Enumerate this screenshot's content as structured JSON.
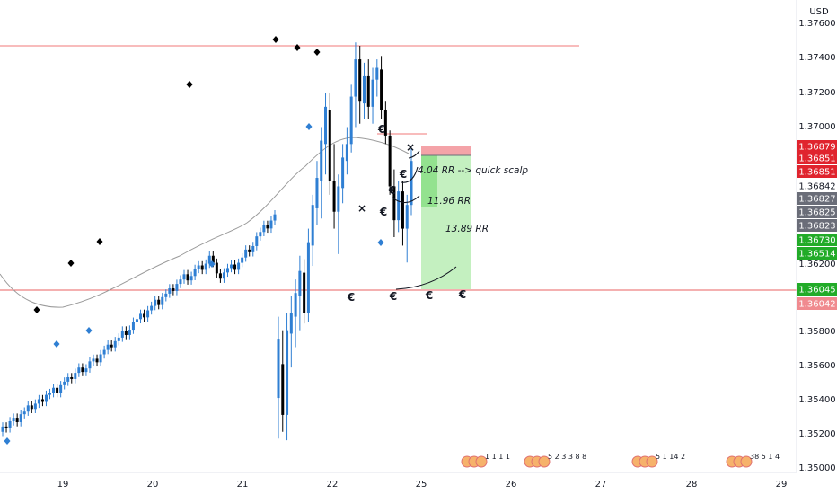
{
  "currency": "USD",
  "colors": {
    "up": "#2f7fd3",
    "down": "#000000",
    "ma": "#9b9b9b",
    "resistance_line": "#f07878",
    "support_line": "#e86060",
    "stop_zone": "#f4a3a8",
    "target_zone": "#c4f0c0",
    "target_zone_small": "#7fdc7a",
    "tag_red": "#e0242e",
    "tag_red_light": "#f08a8f",
    "tag_gray": "#6a6d78",
    "tag_green": "#22ab28",
    "up_marker": "#2f7fd3",
    "down_marker": "#000000"
  },
  "chart_data": {
    "type": "candlestick",
    "symbol_unit": "USD",
    "xlabels": [
      "19",
      "20",
      "21",
      "22",
      "25",
      "26",
      "27",
      "28",
      "29"
    ],
    "ylabels": [
      "1.37600",
      "1.37400",
      "1.37200",
      "1.37000",
      "1.36200",
      "1.35800",
      "1.35600",
      "1.35400",
      "1.35200",
      "1.35000"
    ],
    "ylim": [
      1.3496,
      1.3774
    ],
    "price_tags": [
      {
        "value": "1.36879",
        "price": 1.36879,
        "color": "tag_red"
      },
      {
        "value": "1.36851",
        "price": 1.36851,
        "color": "tag_red"
      },
      {
        "value": "1.36851",
        "price": 1.36851,
        "color": "tag_red"
      },
      {
        "value": "1.36842",
        "price": 1.36842,
        "color": "none"
      },
      {
        "value": "1.36827",
        "price": 1.36827,
        "color": "tag_gray"
      },
      {
        "value": "1.36825",
        "price": 1.36825,
        "color": "tag_gray"
      },
      {
        "value": "1.36823",
        "price": 1.36823,
        "color": "tag_gray"
      },
      {
        "value": "1.36730",
        "price": 1.3673,
        "color": "tag_green"
      },
      {
        "value": "1.36514",
        "price": 1.36514,
        "color": "tag_green"
      },
      {
        "value": "1.36045",
        "price": 1.36045,
        "color": "tag_green"
      },
      {
        "value": "1.36042",
        "price": 1.36042,
        "color": "tag_red_light"
      }
    ],
    "horizontal_lines": [
      {
        "price": 1.3746,
        "name": "resistance"
      },
      {
        "price": 1.36045,
        "name": "support"
      }
    ],
    "candles": [
      [
        1.354,
        1.3588,
        1.3516,
        1.3575
      ],
      [
        1.356,
        1.358,
        1.352,
        1.353
      ],
      [
        1.353,
        1.359,
        1.3515,
        1.358
      ],
      [
        1.3578,
        1.36,
        1.3558,
        1.359
      ],
      [
        1.3588,
        1.361,
        1.357,
        1.3602
      ],
      [
        1.36,
        1.3624,
        1.358,
        1.3615
      ],
      [
        1.3614,
        1.3622,
        1.3584,
        1.359
      ],
      [
        1.359,
        1.364,
        1.3585,
        1.3632
      ],
      [
        1.363,
        1.366,
        1.3618,
        1.3654
      ],
      [
        1.3652,
        1.368,
        1.3642,
        1.367
      ],
      [
        1.3668,
        1.37,
        1.3646,
        1.3692
      ],
      [
        1.369,
        1.372,
        1.3672,
        1.3712
      ],
      [
        1.371,
        1.372,
        1.366,
        1.3668
      ],
      [
        1.3668,
        1.369,
        1.364,
        1.365
      ],
      [
        1.365,
        1.3672,
        1.3625,
        1.3665
      ],
      [
        1.3664,
        1.369,
        1.3655,
        1.3682
      ],
      [
        1.368,
        1.37,
        1.3672,
        1.369
      ],
      [
        1.369,
        1.3725,
        1.3685,
        1.3718
      ],
      [
        1.3718,
        1.375,
        1.37,
        1.374
      ],
      [
        1.374,
        1.3748,
        1.3702,
        1.3715
      ],
      [
        1.3714,
        1.3738,
        1.3705,
        1.373
      ],
      [
        1.373,
        1.374,
        1.3705,
        1.3712
      ],
      [
        1.3712,
        1.3735,
        1.3702,
        1.3728
      ],
      [
        1.3728,
        1.374,
        1.3718,
        1.3735
      ],
      [
        1.3734,
        1.3742,
        1.3705,
        1.371
      ],
      [
        1.371,
        1.3715,
        1.369,
        1.3695
      ],
      [
        1.3695,
        1.3698,
        1.366,
        1.3665
      ],
      [
        1.3665,
        1.3675,
        1.3635,
        1.3645
      ],
      [
        1.3645,
        1.3668,
        1.3638,
        1.3662
      ],
      [
        1.3662,
        1.3668,
        1.363,
        1.364
      ],
      [
        1.364,
        1.366,
        1.362,
        1.3654
      ],
      [
        1.3654,
        1.3688,
        1.3648,
        1.368
      ]
    ],
    "ma_path": [
      [
        1.3635,
        0
      ],
      [
        1.361,
        0.07
      ],
      [
        1.3605,
        0.12
      ],
      [
        1.3612,
        0.2
      ],
      [
        1.3628,
        0.3
      ],
      [
        1.365,
        0.4
      ],
      [
        1.3672,
        0.52
      ],
      [
        1.369,
        0.58
      ],
      [
        1.3695,
        0.63
      ],
      [
        1.3688,
        0.7
      ]
    ],
    "up_markers": [
      1.3525,
      1.3582,
      1.3591,
      1.3613,
      1.3635,
      1.3691
    ],
    "down_markers": [
      1.3605,
      1.3637,
      1.3652,
      1.3718,
      1.3745,
      1.3748,
      1.3746,
      1.3745
    ],
    "annotations": {
      "rr1": "4.04 RR --> quick scalp",
      "rr2": "11.96 RR",
      "rr3": "13.89 RR"
    },
    "euro_symbol": "€",
    "cross_symbol": "×",
    "calendar": [
      {
        "text": "1 1 1 1"
      },
      {
        "text": "5 2 3 3 8 8"
      },
      {
        "text": "5 1 14 2"
      },
      {
        "text": "38 5 1 4"
      }
    ],
    "trade": {
      "entry": 1.36851,
      "stop": 1.36879,
      "target_1": 1.3673,
      "target_2": 1.36045
    }
  }
}
